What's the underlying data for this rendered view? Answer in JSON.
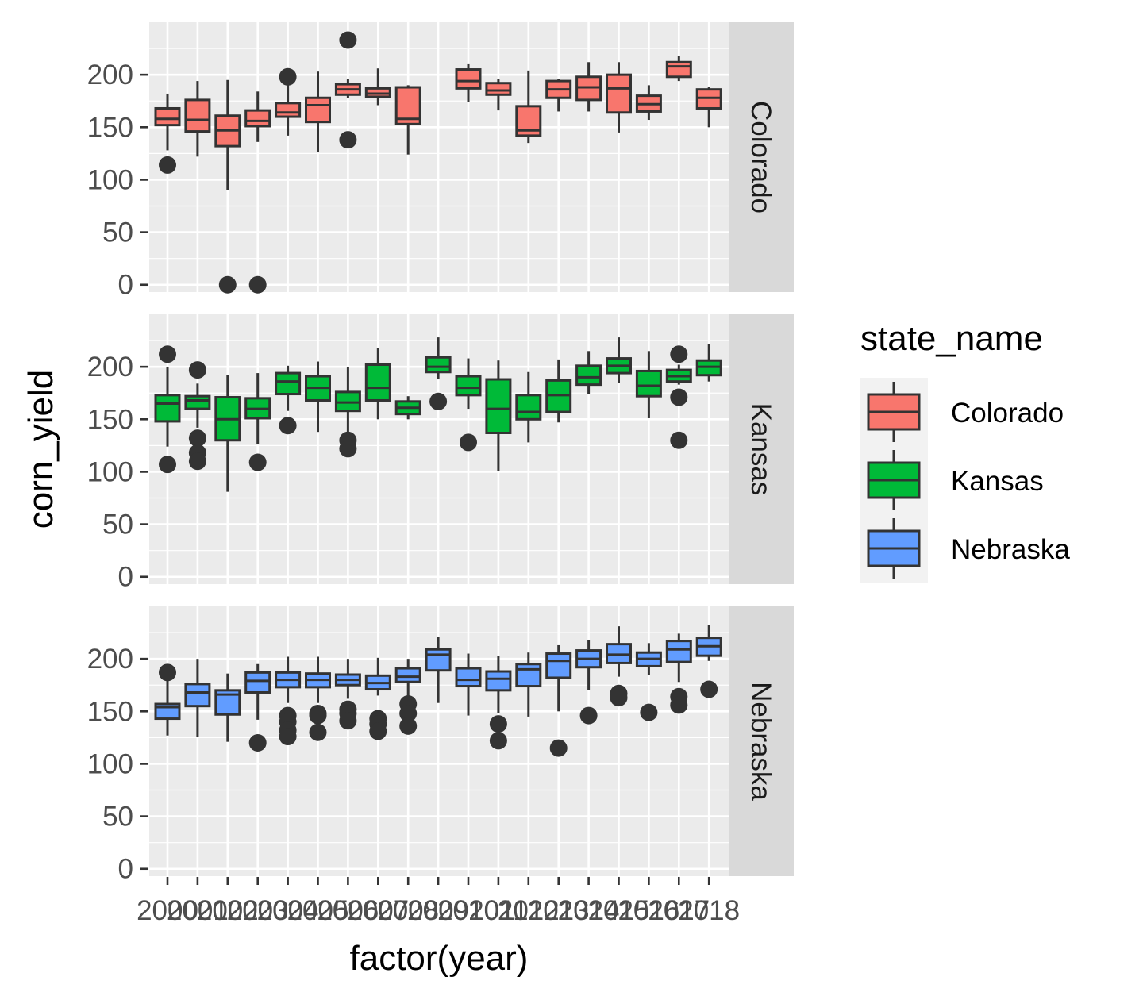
{
  "chart_data": {
    "type": "boxplot",
    "xlabel": "factor(year)",
    "ylabel": "corn_yield",
    "yticks": [
      0,
      50,
      100,
      150,
      200
    ],
    "ylim": [
      -7,
      250
    ],
    "legend": {
      "title": "state_name",
      "position": "right",
      "items": [
        {
          "label": "Colorado",
          "color": "#F8766D"
        },
        {
          "label": "Kansas",
          "color": "#00BA38"
        },
        {
          "label": "Nebraska",
          "color": "#619CFF"
        }
      ]
    },
    "categories": [
      "2000",
      "2001",
      "2002",
      "2003",
      "2004",
      "2005",
      "2006",
      "2007",
      "2008",
      "2009",
      "2010",
      "2011",
      "2012",
      "2013",
      "2014",
      "2015",
      "2016",
      "2017",
      "2018"
    ],
    "panels": [
      {
        "name": "Colorado",
        "color": "#F8766D",
        "boxes": [
          {
            "x": "2000",
            "min": 128,
            "q1": 152,
            "median": 158,
            "q3": 168,
            "max": 182,
            "outliers": [
              114
            ]
          },
          {
            "x": "2001",
            "min": 122,
            "q1": 146,
            "median": 157,
            "q3": 176,
            "max": 194,
            "outliers": []
          },
          {
            "x": "2002",
            "min": 90,
            "q1": 132,
            "median": 147,
            "q3": 161,
            "max": 195,
            "outliers": [
              0
            ]
          },
          {
            "x": "2003",
            "min": 136,
            "q1": 151,
            "median": 156,
            "q3": 166,
            "max": 184,
            "outliers": [
              0
            ]
          },
          {
            "x": "2004",
            "min": 142,
            "q1": 160,
            "median": 164,
            "q3": 173,
            "max": 190,
            "outliers": [
              198
            ]
          },
          {
            "x": "2005",
            "min": 126,
            "q1": 155,
            "median": 171,
            "q3": 178,
            "max": 203,
            "outliers": []
          },
          {
            "x": "2006",
            "min": 178,
            "q1": 181,
            "median": 186,
            "q3": 191,
            "max": 196,
            "outliers": [
              233,
              138
            ]
          },
          {
            "x": "2007",
            "min": 171,
            "q1": 179,
            "median": 182,
            "q3": 187,
            "max": 206,
            "outliers": []
          },
          {
            "x": "2008",
            "min": 124,
            "q1": 153,
            "median": 158,
            "q3": 188,
            "max": 190,
            "outliers": []
          },
          {
            "x": "2010",
            "min": 174,
            "q1": 187,
            "median": 194,
            "q3": 205,
            "max": 210,
            "outliers": []
          },
          {
            "x": "2011",
            "min": 166,
            "q1": 181,
            "median": 185,
            "q3": 192,
            "max": 196,
            "outliers": []
          },
          {
            "x": "2012",
            "min": 135,
            "q1": 142,
            "median": 147,
            "q3": 170,
            "max": 204,
            "outliers": []
          },
          {
            "x": "2013",
            "min": 165,
            "q1": 178,
            "median": 186,
            "q3": 194,
            "max": 196,
            "outliers": []
          },
          {
            "x": "2014",
            "min": 165,
            "q1": 176,
            "median": 188,
            "q3": 198,
            "max": 212,
            "outliers": []
          },
          {
            "x": "2015",
            "min": 145,
            "q1": 164,
            "median": 187,
            "q3": 200,
            "max": 212,
            "outliers": []
          },
          {
            "x": "2016",
            "min": 157,
            "q1": 165,
            "median": 172,
            "q3": 180,
            "max": 190,
            "outliers": []
          },
          {
            "x": "2017",
            "min": 194,
            "q1": 198,
            "median": 208,
            "q3": 212,
            "max": 218,
            "outliers": []
          },
          {
            "x": "2018",
            "min": 150,
            "q1": 168,
            "median": 178,
            "q3": 186,
            "max": 188,
            "outliers": []
          }
        ]
      },
      {
        "name": "Kansas",
        "color": "#00BA38",
        "boxes": [
          {
            "x": "2000",
            "min": 124,
            "q1": 148,
            "median": 165,
            "q3": 173,
            "max": 200,
            "outliers": [
              212,
              107
            ]
          },
          {
            "x": "2001",
            "min": 142,
            "q1": 160,
            "median": 168,
            "q3": 172,
            "max": 184,
            "outliers": [
              197,
              132,
              118,
              110
            ]
          },
          {
            "x": "2002",
            "min": 81,
            "q1": 130,
            "median": 150,
            "q3": 171,
            "max": 192,
            "outliers": []
          },
          {
            "x": "2003",
            "min": 126,
            "q1": 151,
            "median": 160,
            "q3": 170,
            "max": 194,
            "outliers": [
              109
            ]
          },
          {
            "x": "2004",
            "min": 158,
            "q1": 174,
            "median": 186,
            "q3": 194,
            "max": 201,
            "outliers": [
              144
            ]
          },
          {
            "x": "2005",
            "min": 138,
            "q1": 168,
            "median": 180,
            "q3": 191,
            "max": 205,
            "outliers": []
          },
          {
            "x": "2006",
            "min": 136,
            "q1": 158,
            "median": 166,
            "q3": 176,
            "max": 200,
            "outliers": [
              130,
              122
            ]
          },
          {
            "x": "2007",
            "min": 150,
            "q1": 168,
            "median": 180,
            "q3": 202,
            "max": 218,
            "outliers": []
          },
          {
            "x": "2008",
            "min": 150,
            "q1": 155,
            "median": 161,
            "q3": 167,
            "max": 172,
            "outliers": []
          },
          {
            "x": "2009",
            "min": 188,
            "q1": 195,
            "median": 200,
            "q3": 209,
            "max": 228,
            "outliers": [
              167
            ]
          },
          {
            "x": "2010",
            "min": 160,
            "q1": 173,
            "median": 180,
            "q3": 191,
            "max": 208,
            "outliers": [
              128
            ]
          },
          {
            "x": "2011",
            "min": 101,
            "q1": 137,
            "median": 160,
            "q3": 188,
            "max": 206,
            "outliers": []
          },
          {
            "x": "2012",
            "min": 128,
            "q1": 150,
            "median": 157,
            "q3": 173,
            "max": 195,
            "outliers": []
          },
          {
            "x": "2013",
            "min": 147,
            "q1": 157,
            "median": 173,
            "q3": 187,
            "max": 207,
            "outliers": []
          },
          {
            "x": "2014",
            "min": 174,
            "q1": 183,
            "median": 190,
            "q3": 201,
            "max": 215,
            "outliers": []
          },
          {
            "x": "2015",
            "min": 185,
            "q1": 194,
            "median": 201,
            "q3": 208,
            "max": 228,
            "outliers": []
          },
          {
            "x": "2016",
            "min": 151,
            "q1": 172,
            "median": 182,
            "q3": 196,
            "max": 215,
            "outliers": []
          },
          {
            "x": "2017",
            "min": 183,
            "q1": 186,
            "median": 191,
            "q3": 197,
            "max": 202,
            "outliers": [
              212,
              171,
              130
            ]
          },
          {
            "x": "2018",
            "min": 186,
            "q1": 192,
            "median": 200,
            "q3": 206,
            "max": 222,
            "outliers": []
          }
        ]
      },
      {
        "name": "Nebraska",
        "color": "#619CFF",
        "boxes": [
          {
            "x": "2000",
            "min": 127,
            "q1": 143,
            "median": 154,
            "q3": 157,
            "max": 184,
            "outliers": [
              187
            ]
          },
          {
            "x": "2001",
            "min": 126,
            "q1": 155,
            "median": 168,
            "q3": 176,
            "max": 200,
            "outliers": []
          },
          {
            "x": "2002",
            "min": 121,
            "q1": 147,
            "median": 166,
            "q3": 170,
            "max": 186,
            "outliers": []
          },
          {
            "x": "2003",
            "min": 142,
            "q1": 168,
            "median": 179,
            "q3": 187,
            "max": 195,
            "outliers": [
              120
            ]
          },
          {
            "x": "2004",
            "min": 158,
            "q1": 173,
            "median": 180,
            "q3": 187,
            "max": 202,
            "outliers": [
              146,
              140,
              132,
              126
            ]
          },
          {
            "x": "2005",
            "min": 158,
            "q1": 173,
            "median": 180,
            "q3": 186,
            "max": 202,
            "outliers": [
              148,
              146,
              130
            ]
          },
          {
            "x": "2006",
            "min": 162,
            "q1": 175,
            "median": 180,
            "q3": 185,
            "max": 200,
            "outliers": [
              152,
              148,
              141
            ]
          },
          {
            "x": "2007",
            "min": 165,
            "q1": 171,
            "median": 177,
            "q3": 184,
            "max": 201,
            "outliers": [
              143,
              138,
              131
            ]
          },
          {
            "x": "2008",
            "min": 160,
            "q1": 178,
            "median": 183,
            "q3": 191,
            "max": 200,
            "outliers": [
              157,
              148,
              136
            ]
          },
          {
            "x": "2009",
            "min": 158,
            "q1": 189,
            "median": 204,
            "q3": 209,
            "max": 221,
            "outliers": []
          },
          {
            "x": "2010",
            "min": 146,
            "q1": 174,
            "median": 180,
            "q3": 191,
            "max": 205,
            "outliers": []
          },
          {
            "x": "2011",
            "min": 148,
            "q1": 170,
            "median": 181,
            "q3": 188,
            "max": 203,
            "outliers": [
              138,
              122
            ]
          },
          {
            "x": "2012",
            "min": 145,
            "q1": 174,
            "median": 190,
            "q3": 195,
            "max": 206,
            "outliers": []
          },
          {
            "x": "2013",
            "min": 150,
            "q1": 182,
            "median": 198,
            "q3": 205,
            "max": 213,
            "outliers": [
              115
            ]
          },
          {
            "x": "2014",
            "min": 170,
            "q1": 192,
            "median": 200,
            "q3": 208,
            "max": 218,
            "outliers": [
              146
            ]
          },
          {
            "x": "2015",
            "min": 183,
            "q1": 196,
            "median": 204,
            "q3": 214,
            "max": 231,
            "outliers": [
              167,
              163
            ]
          },
          {
            "x": "2016",
            "min": 185,
            "q1": 193,
            "median": 200,
            "q3": 206,
            "max": 215,
            "outliers": [
              149
            ]
          },
          {
            "x": "2017",
            "min": 178,
            "q1": 197,
            "median": 209,
            "q3": 217,
            "max": 224,
            "outliers": [
              164,
              156
            ]
          },
          {
            "x": "2018",
            "min": 198,
            "q1": 203,
            "median": 212,
            "q3": 220,
            "max": 232,
            "outliers": [
              171
            ]
          }
        ]
      }
    ]
  }
}
